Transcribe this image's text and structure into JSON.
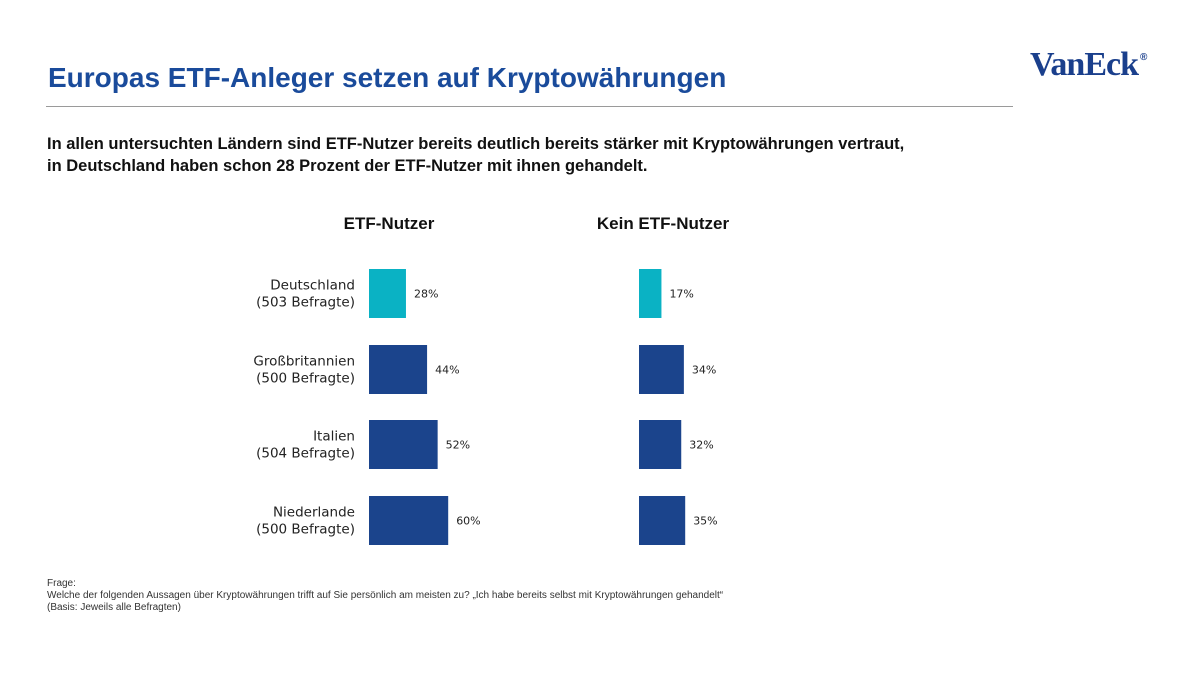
{
  "header": {
    "title": "Europas ETF-Anleger setzen auf Kryptowährungen",
    "logo_text": "VanEck",
    "logo_mark": "®",
    "subtitle": "In allen untersuchten Ländern sind ETF-Nutzer bereits deutlich bereits stärker mit Kryptowährungen vertraut, in Deutschland haben schon 28 Prozent der ETF-Nutzer mit ihnen gehandelt."
  },
  "colors": {
    "title": "#1a4b9b",
    "highlight_bar": "#0ab2c4",
    "bar": "#1b448c"
  },
  "chart_data": {
    "type": "bar",
    "orientation": "horizontal",
    "categories": [
      [
        "Deutschland",
        "(503 Befragte)"
      ],
      [
        "Großbritannien",
        "(500 Befragte)"
      ],
      [
        "Italien",
        "(504 Befragte)"
      ],
      [
        "Niederlande",
        "(500 Befragte)"
      ]
    ],
    "series": [
      {
        "name": "ETF-Nutzer",
        "values": [
          28,
          44,
          52,
          60
        ],
        "labels": [
          "28%",
          "44%",
          "52%",
          "60%"
        ]
      },
      {
        "name": "Kein ETF-Nutzer",
        "values": [
          17,
          34,
          32,
          35
        ],
        "labels": [
          "17%",
          "34%",
          "32%",
          "35%"
        ]
      }
    ],
    "unit": "%",
    "xlim": [
      0,
      100
    ],
    "highlight_category": 0,
    "grid": false
  },
  "footnote": {
    "label": "Frage:",
    "question": "Welche der folgenden Aussagen über Kryptowährungen trifft auf Sie persönlich am meisten zu? „Ich habe bereits selbst mit Kryptowährungen gehandelt“",
    "basis": "(Basis: Jeweils alle Befragten)"
  }
}
